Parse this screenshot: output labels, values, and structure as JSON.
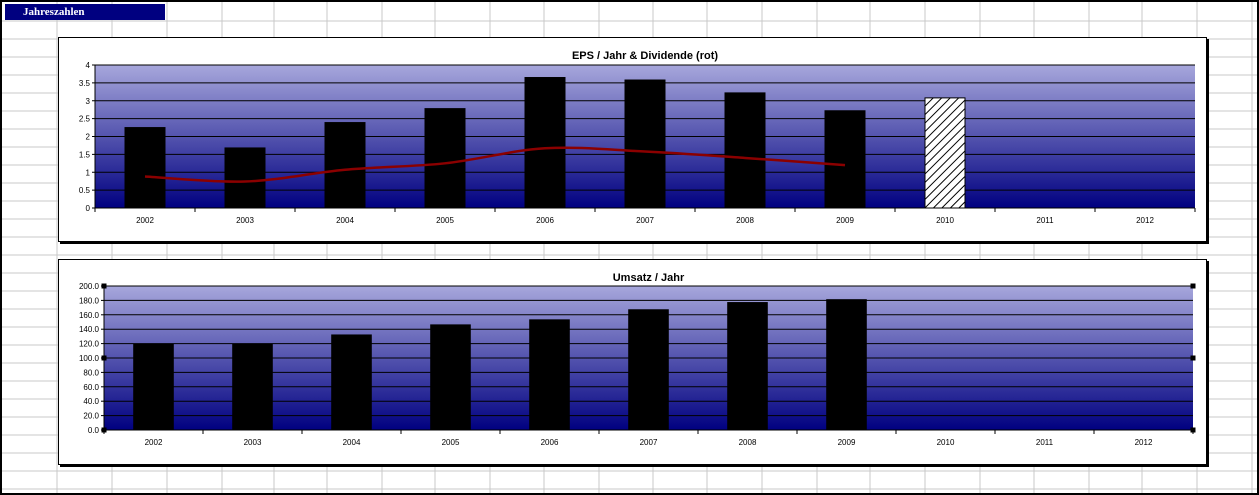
{
  "sheet": {
    "title": "Jahreszahlen"
  },
  "colors": {
    "sheet_title_bg": "#000080",
    "plot_top": "#a7a7dc",
    "plot_bottom": "#000080",
    "bar": "#000000",
    "line": "#8b0000",
    "grid": "#000000"
  },
  "chart_data": [
    {
      "type": "bar",
      "title": "EPS / Jahr & Dividende (rot)",
      "categories": [
        "2002",
        "2003",
        "2004",
        "2005",
        "2006",
        "2007",
        "2008",
        "2009",
        "2010",
        "2011",
        "2012"
      ],
      "series": [
        {
          "type": "bar",
          "values": [
            2.25,
            1.68,
            2.39,
            2.78,
            3.65,
            3.58,
            3.22,
            2.72,
            3.08,
            null,
            null
          ],
          "hatched_categories": [
            "2010"
          ]
        },
        {
          "type": "line",
          "values": [
            0.88,
            0.74,
            1.07,
            1.25,
            1.67,
            1.58,
            1.4,
            1.2,
            null,
            null,
            null
          ]
        }
      ],
      "ylim": [
        0,
        4
      ],
      "yticks": [
        "0",
        "0.5",
        "1",
        "1.5",
        "2",
        "2.5",
        "3",
        "3.5",
        "4"
      ],
      "grid": true,
      "legend": "none"
    },
    {
      "type": "bar",
      "title": "Umsatz / Jahr",
      "categories": [
        "2002",
        "2003",
        "2004",
        "2005",
        "2006",
        "2007",
        "2008",
        "2009",
        "2010",
        "2011",
        "2012"
      ],
      "values": [
        119,
        119,
        132,
        146,
        153,
        167,
        177,
        181,
        null,
        null,
        null
      ],
      "ylim": [
        0,
        200
      ],
      "yticks": [
        "0.0",
        "20.0",
        "40.0",
        "60.0",
        "80.0",
        "100.0",
        "120.0",
        "140.0",
        "160.0",
        "180.0",
        "200.0"
      ],
      "grid": true,
      "legend": "none"
    }
  ]
}
